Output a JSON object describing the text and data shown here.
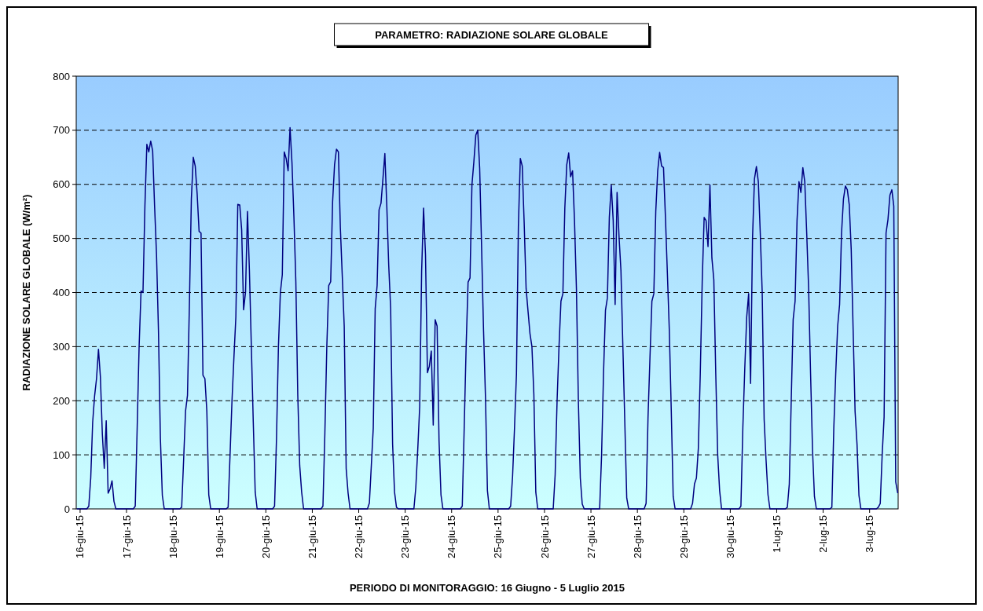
{
  "chart_data": {
    "type": "line",
    "title": "PARAMETRO: RADIAZIONE SOLARE GLOBALE",
    "xlabel": "PERIODO DI MONITORAGGIO: 16 Giugno - 5 Luglio 2015",
    "ylabel": "RADIAZIONE SOLARE GLOBALE (W/m²)",
    "x": [
      "2015-06-15T22:30",
      "2015-06-16T03:30",
      "2015-06-16T04:30",
      "2015-06-16T05:30",
      "2015-06-16T06:30",
      "2015-06-16T07:30",
      "2015-06-16T08:30",
      "2015-06-16T09:30",
      "2015-06-16T10:30",
      "2015-06-16T11:30",
      "2015-06-16T12:30",
      "2015-06-16T13:30",
      "2015-06-16T14:30",
      "2015-06-16T15:30",
      "2015-06-16T16:30",
      "2015-06-16T17:30",
      "2015-06-16T18:30",
      "2015-06-17T03:30",
      "2015-06-17T04:30",
      "2015-06-17T05:30",
      "2015-06-17T06:30",
      "2015-06-17T07:30",
      "2015-06-17T08:30",
      "2015-06-17T09:30",
      "2015-06-17T10:30",
      "2015-06-17T11:30",
      "2015-06-17T12:30",
      "2015-06-17T13:30",
      "2015-06-17T14:30",
      "2015-06-17T15:30",
      "2015-06-17T16:30",
      "2015-06-17T17:30",
      "2015-06-17T18:30",
      "2015-06-17T19:30",
      "2015-06-18T03:30",
      "2015-06-18T04:30",
      "2015-06-18T05:30",
      "2015-06-18T06:30",
      "2015-06-18T07:30",
      "2015-06-18T08:30",
      "2015-06-18T09:30",
      "2015-06-18T10:30",
      "2015-06-18T11:30",
      "2015-06-18T12:30",
      "2015-06-18T13:30",
      "2015-06-18T14:30",
      "2015-06-18T15:30",
      "2015-06-18T16:30",
      "2015-06-18T17:30",
      "2015-06-18T18:30",
      "2015-06-18T19:30",
      "2015-06-19T03:30",
      "2015-06-19T04:30",
      "2015-06-19T05:30",
      "2015-06-19T06:30",
      "2015-06-19T07:30",
      "2015-06-19T08:30",
      "2015-06-19T09:30",
      "2015-06-19T10:30",
      "2015-06-19T11:30",
      "2015-06-19T12:30",
      "2015-06-19T13:30",
      "2015-06-19T14:30",
      "2015-06-19T15:30",
      "2015-06-19T16:30",
      "2015-06-19T17:30",
      "2015-06-19T18:30",
      "2015-06-19T19:30",
      "2015-06-20T03:30",
      "2015-06-20T04:30",
      "2015-06-20T05:30",
      "2015-06-20T06:30",
      "2015-06-20T07:30",
      "2015-06-20T08:30",
      "2015-06-20T09:30",
      "2015-06-20T10:30",
      "2015-06-20T11:30",
      "2015-06-20T12:30",
      "2015-06-20T13:30",
      "2015-06-20T14:30",
      "2015-06-20T15:30",
      "2015-06-20T16:30",
      "2015-06-20T17:30",
      "2015-06-20T18:30",
      "2015-06-20T19:30",
      "2015-06-21T04:30",
      "2015-06-21T05:30",
      "2015-06-21T06:30",
      "2015-06-21T07:30",
      "2015-06-21T08:30",
      "2015-06-21T09:30",
      "2015-06-21T10:30",
      "2015-06-21T11:30",
      "2015-06-21T12:30",
      "2015-06-21T13:30",
      "2015-06-21T14:30",
      "2015-06-21T15:30",
      "2015-06-21T16:30",
      "2015-06-21T17:30",
      "2015-06-21T18:30",
      "2015-06-21T19:30",
      "2015-06-22T04:30",
      "2015-06-22T05:30",
      "2015-06-22T06:30",
      "2015-06-22T07:30",
      "2015-06-22T08:30",
      "2015-06-22T09:30",
      "2015-06-22T10:30",
      "2015-06-22T11:30",
      "2015-06-22T12:30",
      "2015-06-22T13:30",
      "2015-06-22T14:30",
      "2015-06-22T15:30",
      "2015-06-22T16:30",
      "2015-06-22T17:30",
      "2015-06-22T18:30",
      "2015-06-22T19:30",
      "2015-06-22T20:30",
      "2015-06-23T04:30",
      "2015-06-23T05:30",
      "2015-06-23T06:30",
      "2015-06-23T07:30",
      "2015-06-23T08:30",
      "2015-06-23T09:30",
      "2015-06-23T10:30",
      "2015-06-23T11:30",
      "2015-06-23T12:30",
      "2015-06-23T13:30",
      "2015-06-23T14:30",
      "2015-06-23T15:30",
      "2015-06-23T16:30",
      "2015-06-23T17:30",
      "2015-06-23T18:30",
      "2015-06-23T19:30",
      "2015-06-24T04:30",
      "2015-06-24T05:30",
      "2015-06-24T06:30",
      "2015-06-24T07:30",
      "2015-06-24T08:30",
      "2015-06-24T09:30",
      "2015-06-24T10:30",
      "2015-06-24T11:30",
      "2015-06-24T12:30",
      "2015-06-24T13:30",
      "2015-06-24T14:30",
      "2015-06-24T15:30",
      "2015-06-24T16:30",
      "2015-06-24T17:30",
      "2015-06-24T18:30",
      "2015-06-24T19:30",
      "2015-06-25T05:30",
      "2015-06-25T06:30",
      "2015-06-25T07:30",
      "2015-06-25T08:30",
      "2015-06-25T09:30",
      "2015-06-25T10:30",
      "2015-06-25T11:30",
      "2015-06-25T12:30",
      "2015-06-25T13:30",
      "2015-06-25T14:30",
      "2015-06-25T15:30",
      "2015-06-25T16:30",
      "2015-06-25T17:30",
      "2015-06-25T18:30",
      "2015-06-25T19:30",
      "2015-06-25T20:30",
      "2015-06-26T04:30",
      "2015-06-26T05:30",
      "2015-06-26T06:30",
      "2015-06-26T07:30",
      "2015-06-26T08:30",
      "2015-06-26T09:30",
      "2015-06-26T10:30",
      "2015-06-26T11:30",
      "2015-06-26T12:30",
      "2015-06-26T13:30",
      "2015-06-26T14:30",
      "2015-06-26T15:30",
      "2015-06-26T16:30",
      "2015-06-26T17:30",
      "2015-06-26T18:30",
      "2015-06-26T19:30",
      "2015-06-26T20:30",
      "2015-06-27T04:30",
      "2015-06-27T05:30",
      "2015-06-27T06:30",
      "2015-06-27T07:30",
      "2015-06-27T08:30",
      "2015-06-27T09:30",
      "2015-06-27T10:30",
      "2015-06-27T11:30",
      "2015-06-27T12:30",
      "2015-06-27T13:30",
      "2015-06-27T14:30",
      "2015-06-27T15:30",
      "2015-06-27T16:30",
      "2015-06-27T17:30",
      "2015-06-27T18:30",
      "2015-06-27T19:30",
      "2015-06-28T03:30",
      "2015-06-28T04:30",
      "2015-06-28T05:30",
      "2015-06-28T06:30",
      "2015-06-28T07:30",
      "2015-06-28T08:30",
      "2015-06-28T09:30",
      "2015-06-28T10:30",
      "2015-06-28T11:30",
      "2015-06-28T12:30",
      "2015-06-28T13:30",
      "2015-06-28T14:30",
      "2015-06-28T15:30",
      "2015-06-28T16:30",
      "2015-06-28T17:30",
      "2015-06-28T18:30",
      "2015-06-28T19:30",
      "2015-06-29T03:30",
      "2015-06-29T04:30",
      "2015-06-29T05:30",
      "2015-06-29T06:30",
      "2015-06-29T07:30",
      "2015-06-29T08:30",
      "2015-06-29T09:30",
      "2015-06-29T10:30",
      "2015-06-29T11:30",
      "2015-06-29T12:30",
      "2015-06-29T13:30",
      "2015-06-29T14:30",
      "2015-06-29T15:30",
      "2015-06-29T16:30",
      "2015-06-29T17:30",
      "2015-06-29T18:30",
      "2015-06-29T19:30",
      "2015-06-30T04:30",
      "2015-06-30T05:30",
      "2015-06-30T06:30",
      "2015-06-30T07:30",
      "2015-06-30T08:30",
      "2015-06-30T09:30",
      "2015-06-30T10:30",
      "2015-06-30T11:30",
      "2015-06-30T12:30",
      "2015-06-30T13:30",
      "2015-06-30T14:30",
      "2015-06-30T15:30",
      "2015-06-30T16:30",
      "2015-06-30T17:30",
      "2015-06-30T18:30",
      "2015-06-30T19:30",
      "2015-06-30T20:30",
      "2015-07-01T04:30",
      "2015-07-01T05:30",
      "2015-07-01T06:30",
      "2015-07-01T07:30",
      "2015-07-01T08:30",
      "2015-07-01T09:30",
      "2015-07-01T10:30",
      "2015-07-01T11:30",
      "2015-07-01T12:30",
      "2015-07-01T13:30",
      "2015-07-01T14:30",
      "2015-07-01T15:30",
      "2015-07-01T16:30",
      "2015-07-01T17:30",
      "2015-07-01T18:30",
      "2015-07-01T19:30",
      "2015-07-01T20:30",
      "2015-07-02T03:30",
      "2015-07-02T04:30",
      "2015-07-02T05:30",
      "2015-07-02T06:30",
      "2015-07-02T07:30",
      "2015-07-02T08:30",
      "2015-07-02T09:30",
      "2015-07-02T10:30",
      "2015-07-02T11:30",
      "2015-07-02T12:30",
      "2015-07-02T13:30",
      "2015-07-02T14:30",
      "2015-07-02T15:30",
      "2015-07-02T16:30",
      "2015-07-02T17:30",
      "2015-07-02T18:30",
      "2015-07-02T19:30",
      "2015-07-03T03:30",
      "2015-07-03T04:30",
      "2015-07-03T05:30",
      "2015-07-03T06:30",
      "2015-07-03T07:30",
      "2015-07-03T08:30",
      "2015-07-03T09:30",
      "2015-07-03T10:30",
      "2015-07-03T11:30",
      "2015-07-03T12:30",
      "2015-07-03T13:30",
      "2015-07-03T14:30"
    ],
    "series": [
      {
        "color": "#000080",
        "values": [
          0,
          0,
          5,
          57,
          160,
          209,
          241,
          295,
          244,
          138,
          75,
          163,
          29,
          37,
          52,
          14,
          0,
          0,
          5,
          150,
          300,
          403,
          400,
          560,
          674,
          660,
          680,
          662,
          560,
          470,
          330,
          130,
          25,
          0,
          0,
          3,
          90,
          181,
          210,
          380,
          573,
          650,
          634,
          582,
          513,
          510,
          247,
          241,
          181,
          26,
          0,
          0,
          3,
          100,
          200,
          280,
          355,
          563,
          562,
          516,
          368,
          401,
          550,
          441,
          300,
          160,
          31,
          0,
          0,
          5,
          130,
          300,
          400,
          433,
          660,
          648,
          625,
          705,
          640,
          540,
          420,
          210,
          80,
          31,
          0,
          0,
          5,
          140,
          300,
          413,
          420,
          568,
          636,
          665,
          660,
          520,
          430,
          338,
          75,
          29,
          0,
          0,
          11,
          80,
          149,
          370,
          413,
          553,
          565,
          610,
          657,
          560,
          450,
          370,
          120,
          31,
          3,
          0,
          0,
          40,
          110,
          189,
          439,
          556,
          470,
          252,
          264,
          292,
          155,
          350,
          338,
          126,
          26,
          0,
          0,
          5,
          150,
          300,
          419,
          427,
          599,
          642,
          691,
          700,
          630,
          482,
          330,
          206,
          34,
          0,
          0,
          5,
          60,
          150,
          249,
          522,
          648,
          634,
          528,
          407,
          365,
          324,
          300,
          212,
          31,
          0,
          0,
          63,
          200,
          300,
          384,
          398,
          556,
          636,
          658,
          614,
          625,
          533,
          407,
          200,
          57,
          9,
          0,
          0,
          100,
          250,
          367,
          390,
          539,
          599,
          533,
          378,
          585,
          505,
          441,
          300,
          160,
          20,
          0,
          0,
          10,
          170,
          280,
          384,
          398,
          550,
          625,
          659,
          634,
          631,
          539,
          436,
          330,
          183,
          23,
          0,
          0,
          10,
          46,
          57,
          112,
          250,
          420,
          539,
          533,
          485,
          599,
          464,
          424,
          250,
          100,
          34,
          0,
          0,
          5,
          150,
          260,
          355,
          398,
          232,
          500,
          610,
          633,
          605,
          510,
          401,
          166,
          90,
          26,
          0,
          0,
          3,
          46,
          200,
          350,
          384,
          533,
          605,
          585,
          631,
          605,
          510,
          407,
          250,
          110,
          23,
          0,
          0,
          3,
          149,
          250,
          338,
          378,
          510,
          573,
          597,
          590,
          562,
          480,
          330,
          180,
          120,
          25,
          0,
          0,
          3,
          10,
          100,
          170,
          510,
          535,
          580,
          590,
          560,
          50,
          30
        ]
      }
    ],
    "xlim": [
      "2015-06-15T22:00",
      "2015-07-03T14:45"
    ],
    "xticks": [
      {
        "value": "2015-06-16",
        "label": "16-giu-15"
      },
      {
        "value": "2015-06-17",
        "label": "17-giu-15"
      },
      {
        "value": "2015-06-18",
        "label": "18-giu-15"
      },
      {
        "value": "2015-06-19",
        "label": "19-giu-15"
      },
      {
        "value": "2015-06-20",
        "label": "20-giu-15"
      },
      {
        "value": "2015-06-21",
        "label": "21-giu-15"
      },
      {
        "value": "2015-06-22",
        "label": "22-giu-15"
      },
      {
        "value": "2015-06-23",
        "label": "23-giu-15"
      },
      {
        "value": "2015-06-24",
        "label": "24-giu-15"
      },
      {
        "value": "2015-06-25",
        "label": "25-giu-15"
      },
      {
        "value": "2015-06-26",
        "label": "26-giu-15"
      },
      {
        "value": "2015-06-27",
        "label": "27-giu-15"
      },
      {
        "value": "2015-06-28",
        "label": "28-giu-15"
      },
      {
        "value": "2015-06-29",
        "label": "29-giu-15"
      },
      {
        "value": "2015-06-30",
        "label": "30-giu-15"
      },
      {
        "value": "2015-07-01",
        "label": "1-lug-15"
      },
      {
        "value": "2015-07-02",
        "label": "2-lug-15"
      },
      {
        "value": "2015-07-03",
        "label": "3-lug-15"
      }
    ],
    "ylim": [
      0,
      800
    ],
    "yticks": [
      0,
      100,
      200,
      300,
      400,
      500,
      600,
      700,
      800
    ],
    "grid": "y",
    "line_style": "solid",
    "marker": "none"
  }
}
